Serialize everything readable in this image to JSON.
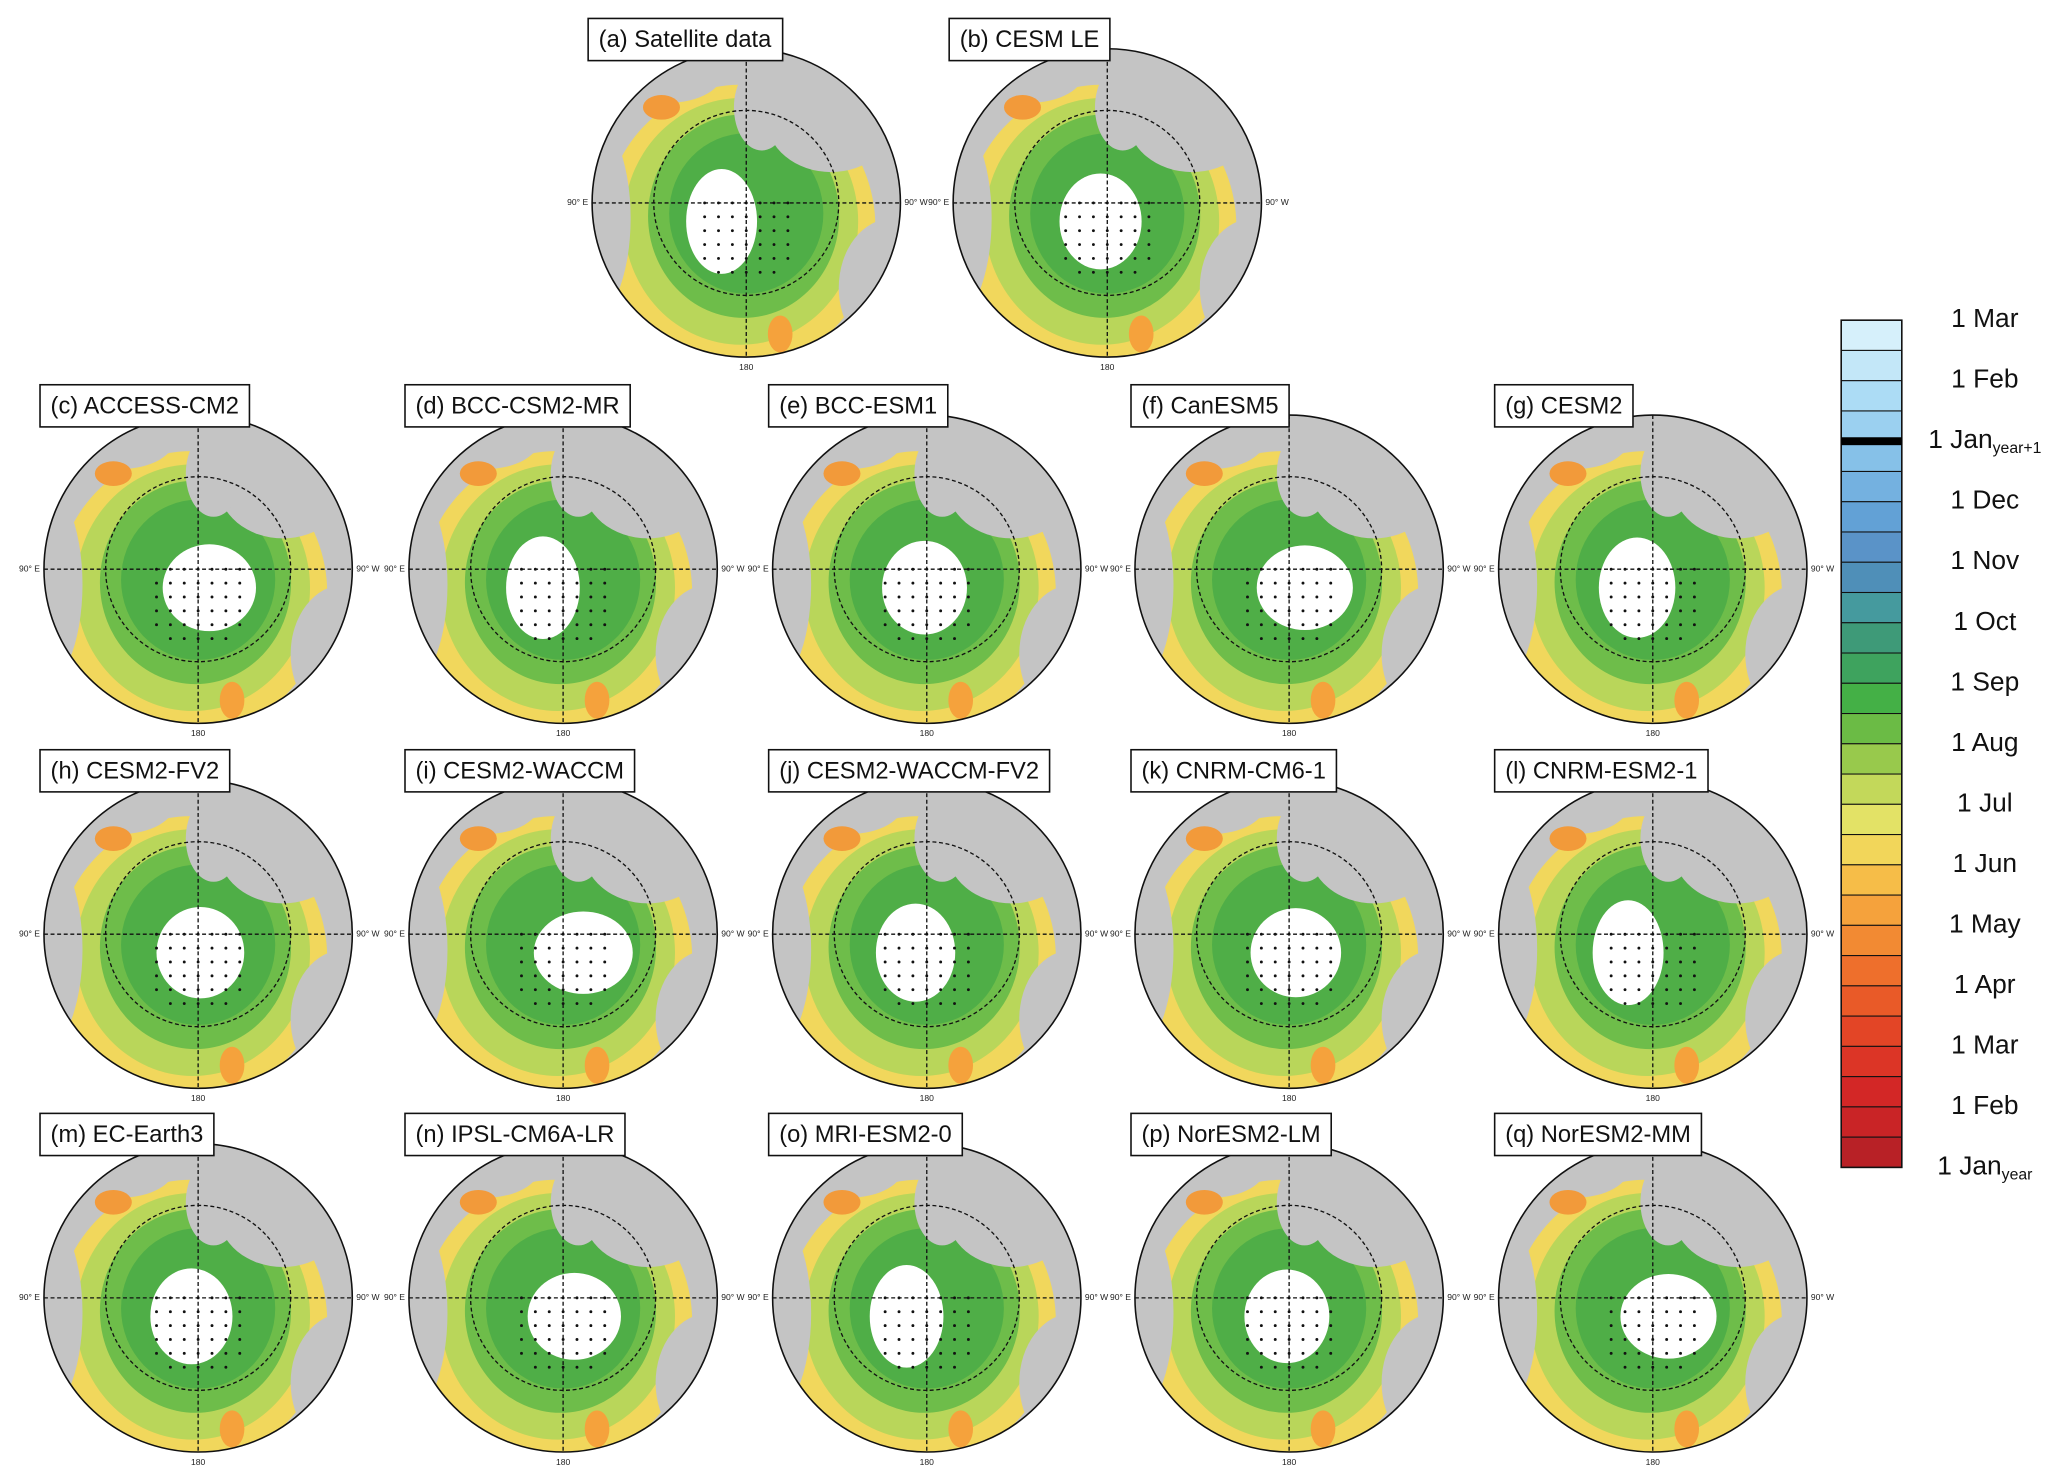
{
  "figure": {
    "panels": [
      {
        "label": "(a) Satellite data"
      },
      {
        "label": "(b) CESM LE"
      },
      {
        "label": "(c) ACCESS-CM2"
      },
      {
        "label": "(d) BCC-CSM2-MR"
      },
      {
        "label": "(e) BCC-ESM1"
      },
      {
        "label": "(f) CanESM5"
      },
      {
        "label": "(g) CESM2"
      },
      {
        "label": "(h) CESM2-FV2"
      },
      {
        "label": "(i) CESM2-WACCM"
      },
      {
        "label": "(j) CESM2-WACCM-FV2"
      },
      {
        "label": "(k) CNRM-CM6-1"
      },
      {
        "label": "(l) CNRM-ESM2-1"
      },
      {
        "label": "(m) EC-Earth3"
      },
      {
        "label": "(n) IPSL-CM6A-LR"
      },
      {
        "label": "(o) MRI-ESM2-0"
      },
      {
        "label": "(p) NorESM2-LM"
      },
      {
        "label": "(q) NorESM2-MM"
      }
    ],
    "lon_labels": {
      "left": "90° E",
      "right": "90° W",
      "bottom": "180"
    },
    "colorbar": {
      "labels": [
        {
          "main": "1 Mar"
        },
        {
          "main": "1 Feb"
        },
        {
          "main": "1 Jan",
          "sub": "year+1"
        },
        {
          "main": "1 Dec"
        },
        {
          "main": "1 Nov"
        },
        {
          "main": "1 Oct"
        },
        {
          "main": "1 Sep"
        },
        {
          "main": "1 Aug"
        },
        {
          "main": "1 Jul"
        },
        {
          "main": "1 Jun"
        },
        {
          "main": "1 May"
        },
        {
          "main": "1 Apr"
        },
        {
          "main": "1 Mar"
        },
        {
          "main": "1 Feb"
        },
        {
          "main": "1 Jan",
          "sub": "year"
        }
      ],
      "colors": [
        "#d6f0fb",
        "#c3e7f8",
        "#acdcf5",
        "#9bd0f0",
        "#86c1e8",
        "#74b1e0",
        "#62a1d6",
        "#5a93c8",
        "#4f8fb8",
        "#459a9e",
        "#3e9a78",
        "#3ea35e",
        "#44b046",
        "#6bbb45",
        "#98c94c",
        "#c3d85a",
        "#e3e266",
        "#f2d65a",
        "#f6bd48",
        "#f5a23c",
        "#f28a33",
        "#ee6f2c",
        "#e95a28",
        "#e34526",
        "#dc3526",
        "#d32726",
        "#c92426",
        "#b82126"
      ]
    }
  }
}
